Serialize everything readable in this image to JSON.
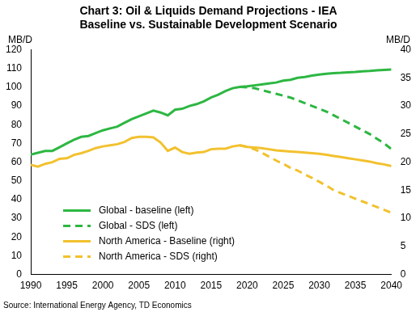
{
  "chart_data": {
    "type": "line",
    "title": [
      "Chart 3: Oil & Liquids Demand Projections - IEA",
      "Baseline vs. Sustainable Development Scenario"
    ],
    "source": "Source: International Energy Agency, TD Economics",
    "y_label": "MB/D",
    "y2_label": "MB/D",
    "x": [
      1990,
      1991,
      1992,
      1993,
      1994,
      1995,
      1996,
      1997,
      1998,
      1999,
      2000,
      2001,
      2002,
      2003,
      2004,
      2005,
      2006,
      2007,
      2008,
      2009,
      2010,
      2011,
      2012,
      2013,
      2014,
      2015,
      2016,
      2017,
      2018,
      2019,
      2020,
      2021,
      2022,
      2023,
      2024,
      2025,
      2026,
      2027,
      2028,
      2029,
      2030,
      2031,
      2032,
      2033,
      2034,
      2035,
      2036,
      2037,
      2038,
      2039,
      2040
    ],
    "xlim": [
      1990,
      2040
    ],
    "xticks": [
      1990,
      1995,
      2000,
      2005,
      2010,
      2015,
      2020,
      2025,
      2030,
      2035,
      2040
    ],
    "ylim": [
      0,
      120
    ],
    "yticks": [
      0,
      10,
      20,
      30,
      40,
      50,
      60,
      70,
      80,
      90,
      100,
      110,
      120
    ],
    "y2lim": [
      0,
      40
    ],
    "y2ticks": [
      0,
      5,
      10,
      15,
      20,
      25,
      30,
      35,
      40
    ],
    "grid": false,
    "legend": "lower left",
    "series": [
      {
        "name": "Global - baseline (left)",
        "color": "#2db742",
        "line_style": "solid",
        "axis": "y",
        "values": [
          64,
          65,
          66,
          66,
          68,
          70,
          72,
          73.5,
          74,
          75.5,
          77,
          78,
          79,
          81,
          83,
          84.5,
          86,
          87.5,
          86.5,
          85,
          88,
          88.5,
          90,
          91,
          92.5,
          94.5,
          96,
          98,
          99.5,
          100.2,
          100.5,
          101,
          101.5,
          102,
          102.5,
          103.5,
          104,
          105,
          105.5,
          106.2,
          106.8,
          107.2,
          107.5,
          107.7,
          108,
          108.2,
          108.5,
          108.7,
          109,
          109.3,
          109.5
        ]
      },
      {
        "name": "Global - SDS (left)",
        "color": "#2db742",
        "line_style": "dashed",
        "axis": "y",
        "values": [
          null,
          null,
          null,
          null,
          null,
          null,
          null,
          null,
          null,
          null,
          null,
          null,
          null,
          null,
          null,
          null,
          null,
          null,
          null,
          null,
          null,
          null,
          null,
          null,
          null,
          null,
          null,
          null,
          null,
          100.2,
          100,
          99.5,
          98.5,
          97.5,
          96.5,
          95.5,
          94.5,
          93,
          91.5,
          90,
          88.5,
          87,
          85,
          83,
          81,
          79,
          77,
          75,
          72.5,
          70,
          67
        ]
      },
      {
        "name": "North America - Baseline (right)",
        "color": "#f2c12e",
        "line_style": "solid",
        "axis": "y2",
        "values": [
          19.5,
          19.2,
          19.7,
          20,
          20.6,
          20.7,
          21.3,
          21.6,
          22,
          22.5,
          22.8,
          23,
          23.2,
          23.6,
          24.3,
          24.5,
          24.5,
          24.4,
          23.5,
          22,
          22.6,
          21.8,
          21.5,
          21.7,
          21.8,
          22.3,
          22.4,
          22.4,
          22.8,
          23,
          22.7,
          22.6,
          22.5,
          22.3,
          22.1,
          22,
          21.9,
          21.8,
          21.7,
          21.6,
          21.5,
          21.3,
          21.1,
          20.9,
          20.7,
          20.5,
          20.3,
          20.1,
          19.8,
          19.6,
          19.3
        ]
      },
      {
        "name": "North America - SDS (right)",
        "color": "#f2c12e",
        "line_style": "dashed",
        "axis": "y2",
        "values": [
          null,
          null,
          null,
          null,
          null,
          null,
          null,
          null,
          null,
          null,
          null,
          null,
          null,
          null,
          null,
          null,
          null,
          null,
          null,
          null,
          null,
          null,
          null,
          null,
          null,
          null,
          null,
          null,
          null,
          23,
          22.7,
          22.3,
          21.7,
          21,
          20.3,
          19.7,
          19,
          18.5,
          17.8,
          17.2,
          16.5,
          15.8,
          15,
          14.5,
          14,
          13.5,
          13,
          12.5,
          12,
          11.5,
          11
        ]
      }
    ]
  }
}
